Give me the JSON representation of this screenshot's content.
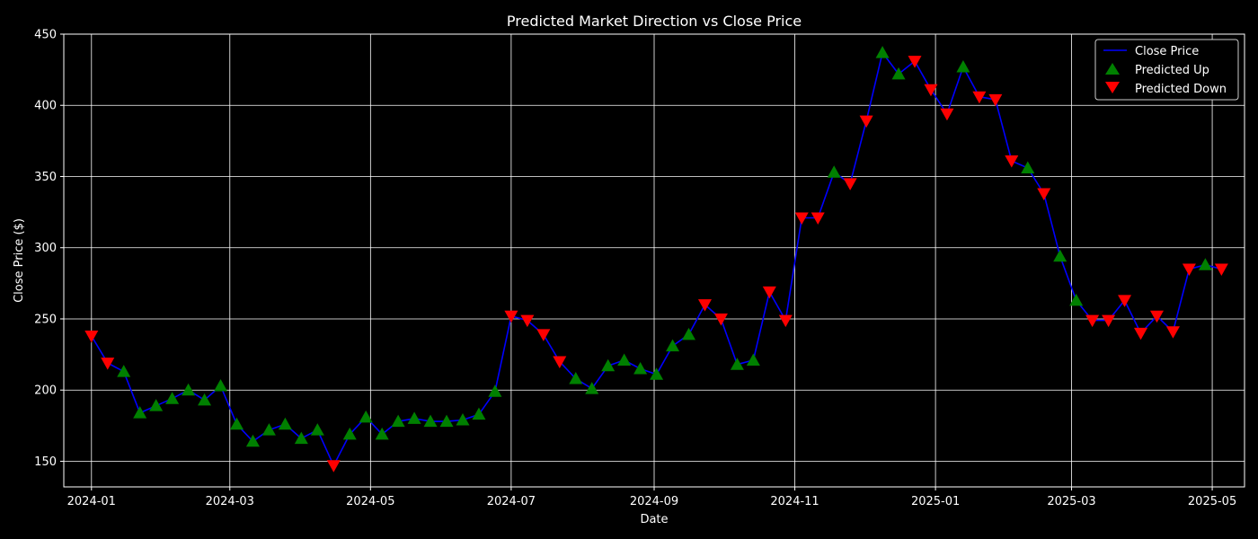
{
  "chart_data": {
    "type": "line",
    "title": "Predicted Market Direction vs Close Price",
    "xlabel": "Date",
    "ylabel": "Close Price ($)",
    "xlim": [
      "2023-12-20",
      "2025-05-15"
    ],
    "ylim": [
      132,
      450
    ],
    "x_ticks": [
      "2024-01-01",
      "2024-03-01",
      "2024-05-01",
      "2024-07-01",
      "2024-09-01",
      "2024-11-01",
      "2025-01-01",
      "2025-03-01",
      "2025-05-01"
    ],
    "x_tick_labels": [
      "2024-01",
      "2024-03",
      "2024-05",
      "2024-07",
      "2024-09",
      "2024-11",
      "2025-01",
      "2025-03",
      "2025-05"
    ],
    "y_ticks": [
      150,
      200,
      250,
      300,
      350,
      400,
      450
    ],
    "grid": true,
    "legend_position": "top-right",
    "legend": [
      "Close Price",
      "Predicted Up",
      "Predicted Down"
    ],
    "colors": {
      "line": "#0000ff",
      "up": "#008000",
      "down": "#ff0000",
      "background": "#000000",
      "grid": "#ffffff",
      "text": "#ffffff"
    },
    "series": [
      {
        "name": "Close Price",
        "points": [
          {
            "x": "2024-01-01",
            "y": 238,
            "dir": "down"
          },
          {
            "x": "2024-01-08",
            "y": 219,
            "dir": "down"
          },
          {
            "x": "2024-01-15",
            "y": 213,
            "dir": "up"
          },
          {
            "x": "2024-01-22",
            "y": 184,
            "dir": "up"
          },
          {
            "x": "2024-01-29",
            "y": 189,
            "dir": "up"
          },
          {
            "x": "2024-02-05",
            "y": 194,
            "dir": "up"
          },
          {
            "x": "2024-02-12",
            "y": 200,
            "dir": "up"
          },
          {
            "x": "2024-02-19",
            "y": 193,
            "dir": "up"
          },
          {
            "x": "2024-02-26",
            "y": 203,
            "dir": "up"
          },
          {
            "x": "2024-03-04",
            "y": 176,
            "dir": "up"
          },
          {
            "x": "2024-03-11",
            "y": 164,
            "dir": "up"
          },
          {
            "x": "2024-03-18",
            "y": 172,
            "dir": "up"
          },
          {
            "x": "2024-03-25",
            "y": 176,
            "dir": "up"
          },
          {
            "x": "2024-04-01",
            "y": 166,
            "dir": "up"
          },
          {
            "x": "2024-04-08",
            "y": 172,
            "dir": "up"
          },
          {
            "x": "2024-04-15",
            "y": 147,
            "dir": "down"
          },
          {
            "x": "2024-04-22",
            "y": 169,
            "dir": "up"
          },
          {
            "x": "2024-04-29",
            "y": 181,
            "dir": "up"
          },
          {
            "x": "2024-05-06",
            "y": 169,
            "dir": "up"
          },
          {
            "x": "2024-05-13",
            "y": 178,
            "dir": "up"
          },
          {
            "x": "2024-05-20",
            "y": 180,
            "dir": "up"
          },
          {
            "x": "2024-05-27",
            "y": 178,
            "dir": "up"
          },
          {
            "x": "2024-06-03",
            "y": 178,
            "dir": "up"
          },
          {
            "x": "2024-06-10",
            "y": 179,
            "dir": "up"
          },
          {
            "x": "2024-06-17",
            "y": 183,
            "dir": "up"
          },
          {
            "x": "2024-06-24",
            "y": 199,
            "dir": "up"
          },
          {
            "x": "2024-07-01",
            "y": 252,
            "dir": "down"
          },
          {
            "x": "2024-07-08",
            "y": 249,
            "dir": "down"
          },
          {
            "x": "2024-07-15",
            "y": 239,
            "dir": "down"
          },
          {
            "x": "2024-07-22",
            "y": 220,
            "dir": "down"
          },
          {
            "x": "2024-07-29",
            "y": 208,
            "dir": "up"
          },
          {
            "x": "2024-08-05",
            "y": 201,
            "dir": "up"
          },
          {
            "x": "2024-08-12",
            "y": 217,
            "dir": "up"
          },
          {
            "x": "2024-08-19",
            "y": 221,
            "dir": "up"
          },
          {
            "x": "2024-08-26",
            "y": 215,
            "dir": "up"
          },
          {
            "x": "2024-09-02",
            "y": 211,
            "dir": "up"
          },
          {
            "x": "2024-09-09",
            "y": 231,
            "dir": "up"
          },
          {
            "x": "2024-09-16",
            "y": 239,
            "dir": "up"
          },
          {
            "x": "2024-09-23",
            "y": 260,
            "dir": "down"
          },
          {
            "x": "2024-09-30",
            "y": 250,
            "dir": "down"
          },
          {
            "x": "2024-10-07",
            "y": 218,
            "dir": "up"
          },
          {
            "x": "2024-10-14",
            "y": 221,
            "dir": "up"
          },
          {
            "x": "2024-10-21",
            "y": 269,
            "dir": "down"
          },
          {
            "x": "2024-10-28",
            "y": 249,
            "dir": "down"
          },
          {
            "x": "2024-11-04",
            "y": 321,
            "dir": "down"
          },
          {
            "x": "2024-11-11",
            "y": 321,
            "dir": "down"
          },
          {
            "x": "2024-11-18",
            "y": 353,
            "dir": "up"
          },
          {
            "x": "2024-11-25",
            "y": 345,
            "dir": "down"
          },
          {
            "x": "2024-12-02",
            "y": 389,
            "dir": "down"
          },
          {
            "x": "2024-12-09",
            "y": 437,
            "dir": "up"
          },
          {
            "x": "2024-12-16",
            "y": 422,
            "dir": "up"
          },
          {
            "x": "2024-12-23",
            "y": 431,
            "dir": "down"
          },
          {
            "x": "2024-12-30",
            "y": 411,
            "dir": "down"
          },
          {
            "x": "2025-01-06",
            "y": 394,
            "dir": "down"
          },
          {
            "x": "2025-01-13",
            "y": 427,
            "dir": "up"
          },
          {
            "x": "2025-01-20",
            "y": 406,
            "dir": "down"
          },
          {
            "x": "2025-01-27",
            "y": 404,
            "dir": "down"
          },
          {
            "x": "2025-02-03",
            "y": 361,
            "dir": "down"
          },
          {
            "x": "2025-02-10",
            "y": 356,
            "dir": "up"
          },
          {
            "x": "2025-02-17",
            "y": 338,
            "dir": "down"
          },
          {
            "x": "2025-02-24",
            "y": 294,
            "dir": "up"
          },
          {
            "x": "2025-03-03",
            "y": 263,
            "dir": "up"
          },
          {
            "x": "2025-03-10",
            "y": 249,
            "dir": "down"
          },
          {
            "x": "2025-03-17",
            "y": 249,
            "dir": "down"
          },
          {
            "x": "2025-03-24",
            "y": 263,
            "dir": "down"
          },
          {
            "x": "2025-03-31",
            "y": 240,
            "dir": "down"
          },
          {
            "x": "2025-04-07",
            "y": 252,
            "dir": "down"
          },
          {
            "x": "2025-04-14",
            "y": 241,
            "dir": "down"
          },
          {
            "x": "2025-04-21",
            "y": 285,
            "dir": "down"
          },
          {
            "x": "2025-04-28",
            "y": 288,
            "dir": "up"
          },
          {
            "x": "2025-05-05",
            "y": 285,
            "dir": "down"
          }
        ]
      }
    ]
  }
}
